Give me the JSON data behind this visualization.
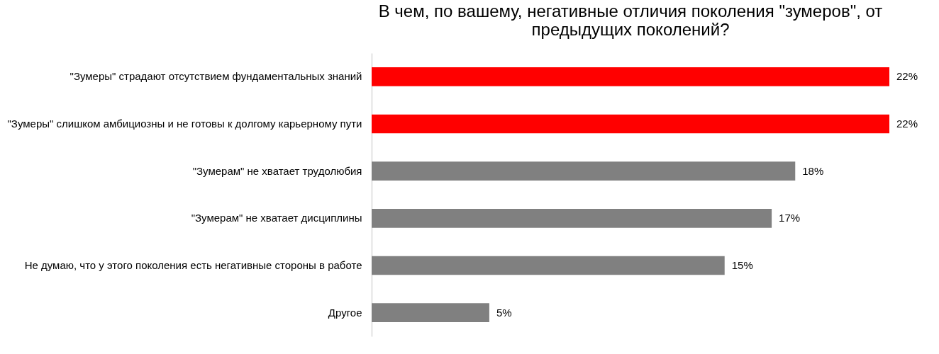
{
  "chart_data": {
    "type": "bar",
    "orientation": "horizontal",
    "title": "В чем, по вашему, негативные отличия поколения \"зумеров\", от предыдущих поколений?",
    "categories": [
      "\"Зумеры\" страдают отсутствием фундаментальных знаний",
      "\"Зумеры\"  слишком амбициозны и не готовы к долгому карьерному пути",
      "\"Зумерам\" не хватает трудолюбия",
      "\"Зумерам\"  не хватает дисциплины",
      "Не думаю, что у этого поколения есть негативные стороны в работе",
      "Другое"
    ],
    "values": [
      22,
      22,
      18,
      17,
      15,
      5
    ],
    "value_labels": [
      "22%",
      "22%",
      "18%",
      "17%",
      "15%",
      "5%"
    ],
    "colors": [
      "#ff0000",
      "#ff0000",
      "#808080",
      "#808080",
      "#808080",
      "#808080"
    ],
    "grid": false,
    "tick_labels": "y"
  }
}
